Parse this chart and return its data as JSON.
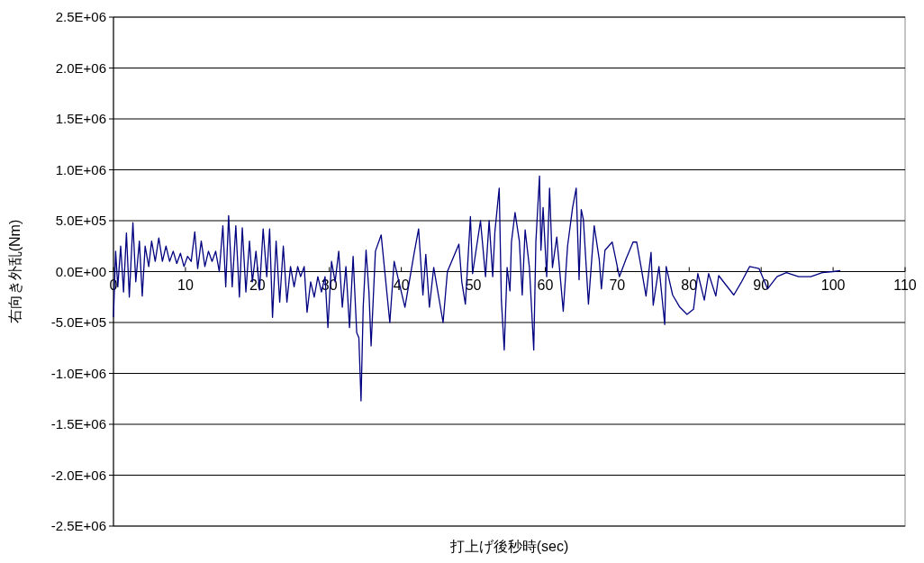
{
  "chart_data": {
    "type": "line",
    "xlabel": "打上げ後秒時(sec)",
    "ylabel": "右向き外乱(Nm)",
    "xlim": [
      0,
      110
    ],
    "xticks": [
      0,
      10,
      20,
      30,
      40,
      50,
      60,
      70,
      80,
      90,
      100,
      110
    ],
    "ylim": [
      -2500000,
      2500000
    ],
    "yticks": [
      {
        "value": -2500000,
        "label": "-2.5E+06"
      },
      {
        "value": -2000000,
        "label": "-2.0E+06"
      },
      {
        "value": -1500000,
        "label": "-1.5E+06"
      },
      {
        "value": -1000000,
        "label": "-1.0E+06"
      },
      {
        "value": -500000,
        "label": "-5.0E+05"
      },
      {
        "value": 0,
        "label": "0.0E+00"
      },
      {
        "value": 500000,
        "label": "5.0E+05"
      },
      {
        "value": 1000000,
        "label": "1.0E+06"
      },
      {
        "value": 1500000,
        "label": "1.5E+06"
      },
      {
        "value": 2000000,
        "label": "2.0E+06"
      },
      {
        "value": 2500000,
        "label": "2.5E+06"
      }
    ],
    "grid": "y",
    "series": [
      {
        "color": "#000080",
        "x": [
          0,
          0.3,
          0.6,
          1,
          1.4,
          1.8,
          2.2,
          2.7,
          3.1,
          3.6,
          4,
          4.4,
          4.9,
          5.3,
          5.8,
          6.3,
          6.8,
          7.3,
          7.8,
          8.3,
          8.8,
          9.3,
          9.8,
          10.3,
          10.8,
          11.3,
          11.7,
          12.2,
          12.7,
          13.2,
          13.7,
          14.2,
          14.7,
          15.2,
          15.6,
          16,
          16.5,
          17,
          17.5,
          17.9,
          18.4,
          18.9,
          19.3,
          19.8,
          20.3,
          20.8,
          21.3,
          21.7,
          22.1,
          22.6,
          23.1,
          23.6,
          24.1,
          24.6,
          25.1,
          25.6,
          26,
          26.5,
          26.9,
          27.4,
          27.9,
          28.4,
          28.9,
          29.4,
          29.8,
          30.3,
          30.8,
          31.3,
          31.8,
          32.3,
          32.8,
          33.3,
          33.8,
          34.1,
          34.4,
          34.7,
          35.1,
          35.5,
          35.8,
          36.4,
          37.2,
          38.4,
          39,
          40.5,
          41.8,
          42.4,
          43,
          43.4,
          43.9,
          44.5,
          45.8,
          46.4,
          48,
          48.4,
          48.9,
          49.6,
          49.9,
          51,
          51.7,
          52.2,
          52.7,
          53,
          53.6,
          53.9,
          54.3,
          54.7,
          55.1,
          55.3,
          55.8,
          56.4,
          56.8,
          57.2,
          57.8,
          58.4,
          58.7,
          59.2,
          59.4,
          59.7,
          60.2,
          60.6,
          61,
          61.6,
          62.5,
          63.1,
          63.8,
          64.3,
          64.7,
          65,
          65.3,
          66,
          66.8,
          67.5,
          67.8,
          68.3,
          69.3,
          70.3,
          71.2,
          72.2,
          72.7,
          73.3,
          74,
          74.7,
          75,
          75.8,
          76.6,
          76.8,
          77.7,
          78.7,
          79.7,
          80.6,
          81.2,
          82.1,
          82.7,
          83.7,
          84.1,
          86.2,
          87.2,
          88.4,
          89,
          89.7,
          90.9,
          92.2,
          93.5,
          95.2,
          96.9,
          98.5,
          100,
          101
        ],
        "values": [
          -450000,
          200000,
          -150000,
          250000,
          -200000,
          380000,
          -250000,
          480000,
          -100000,
          300000,
          -240000,
          250000,
          50000,
          300000,
          100000,
          330000,
          100000,
          250000,
          100000,
          200000,
          80000,
          180000,
          50000,
          150000,
          100000,
          390000,
          30000,
          300000,
          50000,
          200000,
          100000,
          200000,
          0,
          450000,
          -150000,
          550000,
          -150000,
          450000,
          -250000,
          430000,
          -200000,
          300000,
          -100000,
          200000,
          -180000,
          420000,
          -50000,
          420000,
          -450000,
          300000,
          -300000,
          250000,
          -300000,
          50000,
          -150000,
          50000,
          -50000,
          50000,
          -400000,
          -100000,
          -250000,
          -50000,
          -200000,
          -50000,
          -550000,
          100000,
          -100000,
          200000,
          -350000,
          50000,
          -550000,
          150000,
          -600000,
          -650000,
          -1270000,
          -350000,
          210000,
          -200000,
          -730000,
          200000,
          360000,
          -500000,
          100000,
          -350000,
          190000,
          420000,
          -230000,
          170000,
          -350000,
          40000,
          -500000,
          0,
          270000,
          -100000,
          -320000,
          540000,
          -20000,
          500000,
          -50000,
          500000,
          -50000,
          390000,
          820000,
          -280000,
          -770000,
          40000,
          -190000,
          290000,
          580000,
          300000,
          -230000,
          410000,
          40000,
          -770000,
          300000,
          940000,
          210000,
          630000,
          -50000,
          820000,
          40000,
          340000,
          -390000,
          250000,
          630000,
          820000,
          -80000,
          610000,
          510000,
          -320000,
          450000,
          120000,
          -170000,
          210000,
          290000,
          -50000,
          120000,
          290000,
          290000,
          50000,
          -240000,
          190000,
          -330000,
          50000,
          -520000,
          50000,
          -230000,
          -350000,
          -420000,
          -370000,
          -20000,
          -280000,
          -20000,
          -240000,
          -40000,
          -230000,
          -110000,
          50000,
          40000,
          30000,
          -170000,
          -50000,
          -10000,
          -50000,
          -50000,
          -10000,
          0,
          10000
        ]
      }
    ]
  }
}
